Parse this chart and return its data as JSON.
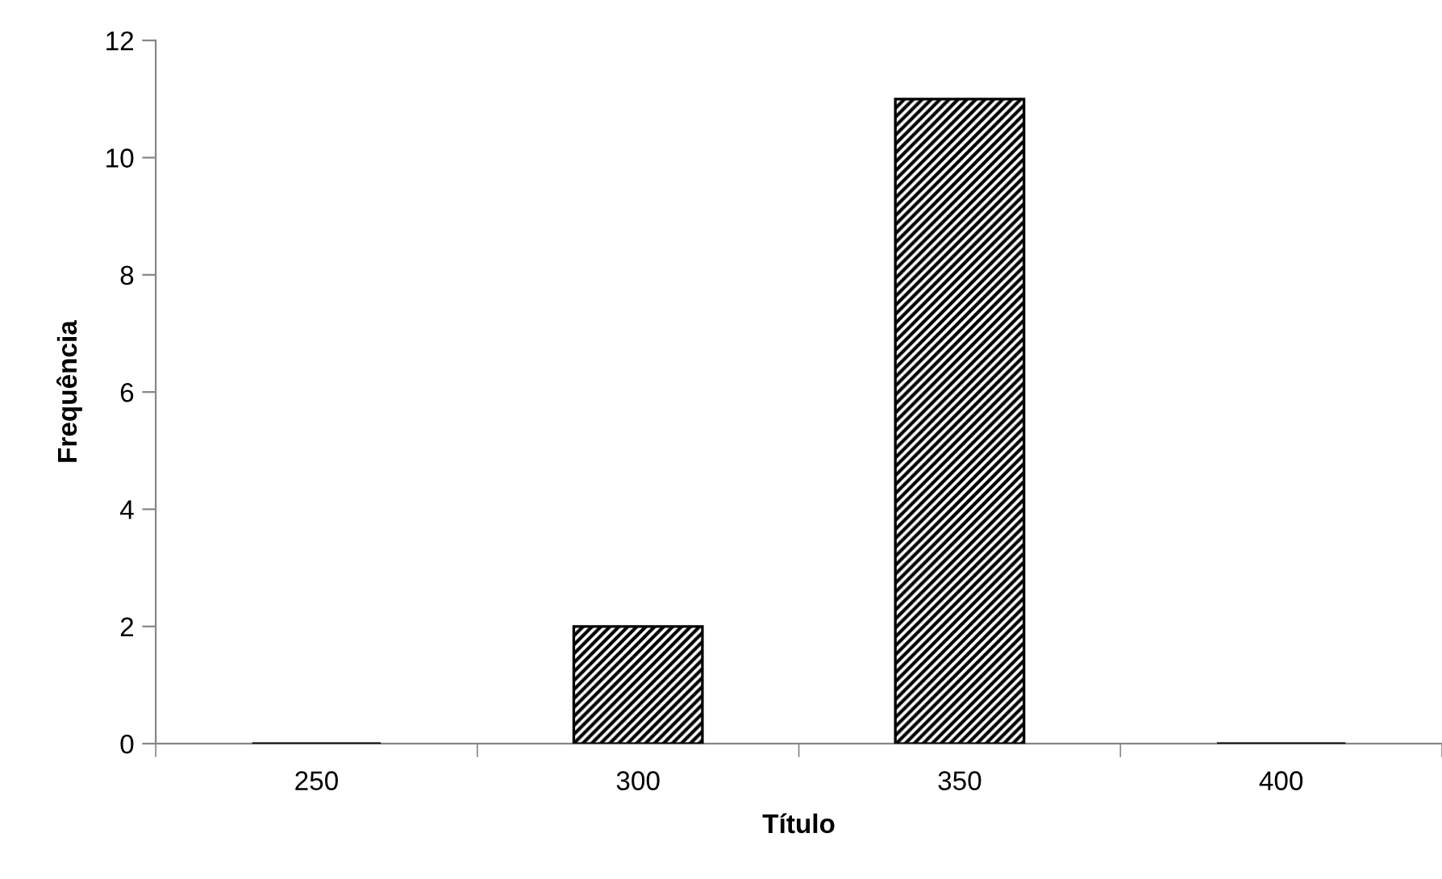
{
  "chart_data": {
    "type": "bar",
    "xlabel": "Título",
    "ylabel": "Frequência",
    "categories": [
      "250",
      "300",
      "350",
      "400"
    ],
    "values": [
      0,
      2,
      11,
      0
    ],
    "color": "#000000",
    "ylim": [
      0,
      12
    ],
    "yticks": [
      0,
      2,
      4,
      6,
      8,
      10,
      12
    ],
    "grid": false,
    "legend": false
  }
}
